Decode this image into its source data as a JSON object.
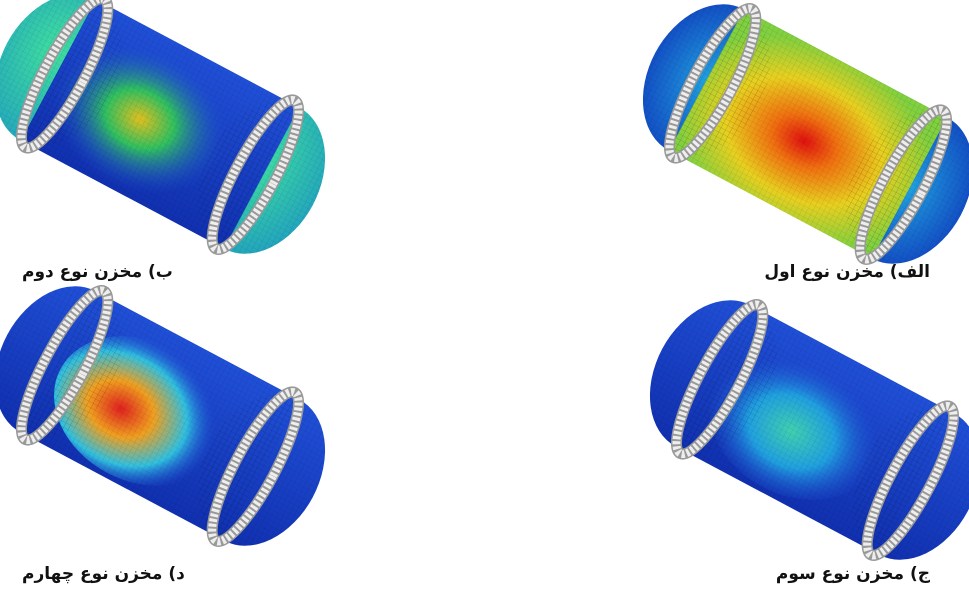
{
  "figures": [
    {
      "caption": "الف) مخزن نوع اول"
    },
    {
      "caption": "ب) مخزن نوع دوم"
    },
    {
      "caption": "ج) مخزن نوع سوم"
    },
    {
      "caption": "د) مخزن نوع چهارم"
    }
  ]
}
